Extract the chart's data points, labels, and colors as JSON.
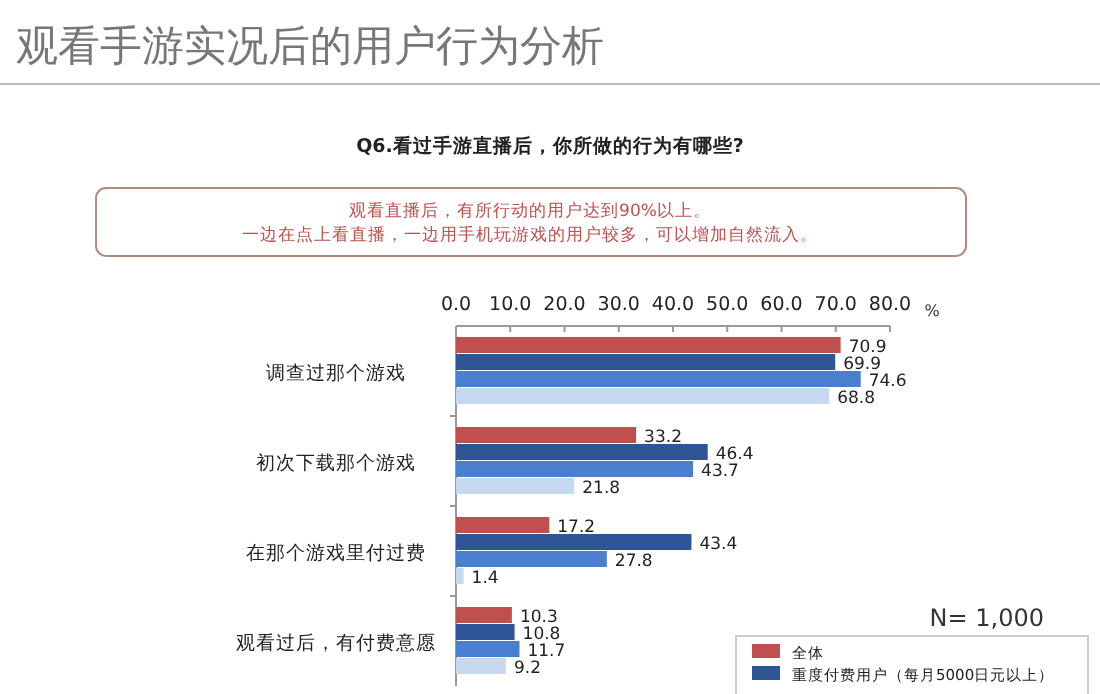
{
  "chart_data": {
    "type": "bar",
    "orientation": "horizontal",
    "title": "观看手游实况后的用户行为分析",
    "subtitle": "Q6.看过手游直播后，你所做的行为有哪些?",
    "xlabel": "%",
    "annotations": [
      "观看直播后，有所行动的用户达到90%以上。",
      "一边在点上看直播，一边用手机玩游戏的用户较多，可以增加自然流入。",
      "N= 1,000"
    ],
    "categories": [
      "调查过那个游戏",
      "初次下载那个游戏",
      "在那个游戏里付过费",
      "观看过后，有付费意愿"
    ],
    "series": [
      {
        "name": "全体",
        "color": "#c0504d",
        "values": [
          70.9,
          33.2,
          17.2,
          10.3
        ]
      },
      {
        "name": "重度付费用户（每月5000日元以上）",
        "color": "#2f5597",
        "values": [
          69.9,
          46.4,
          43.4,
          10.8
        ]
      },
      {
        "color": "#4a7fd0",
        "values": [
          74.6,
          43.7,
          27.8,
          11.7
        ]
      },
      {
        "color": "#c6d9f1",
        "values": [
          68.8,
          21.8,
          1.4,
          9.2
        ]
      }
    ],
    "xlim": [
      0,
      80
    ],
    "xticks": [
      {
        "value": 0,
        "label": "0.0"
      },
      {
        "value": 10,
        "label": "10.0"
      },
      {
        "value": 20,
        "label": "20.0"
      },
      {
        "value": 30,
        "label": "30.0"
      },
      {
        "value": 40,
        "label": "40.0"
      },
      {
        "value": 50,
        "label": "50.0"
      },
      {
        "value": 60,
        "label": "60.0"
      },
      {
        "value": 70,
        "label": "70.0"
      },
      {
        "value": 80,
        "label": "80.0"
      }
    ],
    "data_labels": true,
    "legend": "bottom right",
    "grid": false
  }
}
